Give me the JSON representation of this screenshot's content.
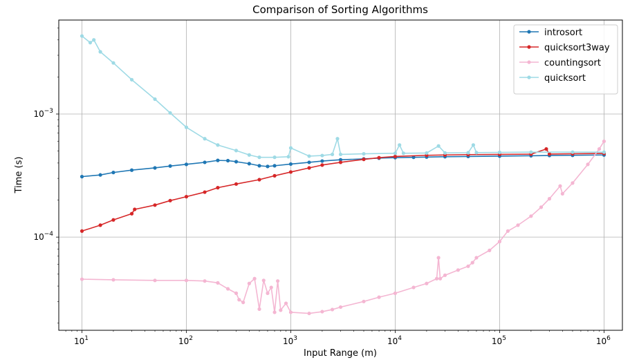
{
  "chart_data": {
    "type": "line",
    "title": "Comparison of Sorting Algorithms",
    "xlabel": "Input Range (m)",
    "ylabel": "Time (s)",
    "xscale": "log",
    "yscale": "log",
    "xlim": [
      6.0,
      1500000
    ],
    "ylim": [
      1.75e-05,
      0.0058
    ],
    "grid": true,
    "legend_position": "top-right",
    "x_ticks": [
      {
        "value": 10,
        "base": "10",
        "exp": "1"
      },
      {
        "value": 100,
        "base": "10",
        "exp": "2"
      },
      {
        "value": 1000,
        "base": "10",
        "exp": "3"
      },
      {
        "value": 10000,
        "base": "10",
        "exp": "4"
      },
      {
        "value": 100000,
        "base": "10",
        "exp": "5"
      },
      {
        "value": 1000000,
        "base": "10",
        "exp": "6"
      }
    ],
    "y_ticks": [
      {
        "value": 0.0001,
        "base": "10",
        "exp": "−4"
      },
      {
        "value": 0.001,
        "base": "10",
        "exp": "−3"
      }
    ],
    "series": [
      {
        "name": "introsort",
        "color": "#1f77b4",
        "x": [
          10,
          15,
          20,
          30,
          50,
          70,
          100,
          150,
          200,
          250,
          300,
          400,
          500,
          600,
          700,
          1000,
          1500,
          2000,
          3000,
          5000,
          7000,
          10000,
          15000,
          20000,
          30000,
          50000,
          100000,
          200000,
          300000,
          500000,
          1000000
        ],
        "y": [
          0.00031,
          0.00032,
          0.000335,
          0.00035,
          0.000365,
          0.000378,
          0.00039,
          0.000405,
          0.00042,
          0.000418,
          0.00041,
          0.000395,
          0.00038,
          0.000375,
          0.00038,
          0.000392,
          0.000405,
          0.000415,
          0.000425,
          0.000432,
          0.000438,
          0.000442,
          0.000445,
          0.000447,
          0.00045,
          0.000452,
          0.000455,
          0.000458,
          0.00046,
          0.000462,
          0.000465
        ]
      },
      {
        "name": "quicksort3way",
        "color": "#d62728",
        "x": [
          10,
          15,
          20,
          30,
          32,
          50,
          70,
          100,
          150,
          200,
          300,
          500,
          700,
          1000,
          1500,
          2000,
          3000,
          5000,
          7000,
          10000,
          20000,
          30000,
          50000,
          100000,
          200000,
          280000,
          300000,
          500000,
          1000000
        ],
        "y": [
          0.000112,
          0.000125,
          0.000138,
          0.000155,
          0.000168,
          0.000182,
          0.000198,
          0.000213,
          0.000232,
          0.000252,
          0.00027,
          0.000293,
          0.000315,
          0.000338,
          0.000365,
          0.000385,
          0.000405,
          0.000428,
          0.000442,
          0.000452,
          0.000462,
          0.000465,
          0.000468,
          0.00047,
          0.000472,
          0.00052,
          0.000473,
          0.000475,
          0.000478
        ]
      },
      {
        "name": "countingsort",
        "color": "#f4b6d2",
        "x": [
          10,
          20,
          50,
          100,
          150,
          200,
          250,
          300,
          320,
          350,
          400,
          450,
          500,
          550,
          600,
          650,
          700,
          750,
          800,
          900,
          1000,
          1500,
          2000,
          2500,
          3000,
          5000,
          7000,
          10000,
          15000,
          20000,
          25000,
          26000,
          27000,
          30000,
          40000,
          50000,
          55000,
          60000,
          80000,
          100000,
          120000,
          150000,
          200000,
          250000,
          300000,
          380000,
          400000,
          500000,
          700000,
          900000,
          1000000
        ],
        "y": [
          4.55e-05,
          4.5e-05,
          4.45e-05,
          4.45e-05,
          4.4e-05,
          4.25e-05,
          3.8e-05,
          3.5e-05,
          3.1e-05,
          2.95e-05,
          4.2e-05,
          4.6e-05,
          2.6e-05,
          4.45e-05,
          3.5e-05,
          3.9e-05,
          2.45e-05,
          4.4e-05,
          2.55e-05,
          2.9e-05,
          2.45e-05,
          2.4e-05,
          2.48e-05,
          2.58e-05,
          2.7e-05,
          3e-05,
          3.25e-05,
          3.5e-05,
          3.9e-05,
          4.2e-05,
          4.6e-05,
          6.8e-05,
          4.6e-05,
          4.9e-05,
          5.4e-05,
          5.8e-05,
          6.2e-05,
          6.8e-05,
          7.8e-05,
          9.2e-05,
          0.000112,
          0.000125,
          0.000148,
          0.000175,
          0.000205,
          0.00026,
          0.000225,
          0.000275,
          0.00039,
          0.00052,
          0.0006
        ]
      },
      {
        "name": "quicksort",
        "color": "#9edae5",
        "x": [
          10,
          12,
          13,
          15,
          20,
          30,
          50,
          70,
          100,
          150,
          200,
          300,
          400,
          500,
          700,
          950,
          1000,
          1500,
          2000,
          2500,
          2800,
          3000,
          5000,
          10000,
          11000,
          12000,
          20000,
          26000,
          30000,
          50000,
          56000,
          60000,
          100000,
          200000,
          500000,
          1000000
        ],
        "y": [
          0.0043,
          0.0038,
          0.004,
          0.0032,
          0.0026,
          0.0019,
          0.00132,
          0.00102,
          0.00078,
          0.00063,
          0.00056,
          0.000505,
          0.000465,
          0.000445,
          0.000445,
          0.00045,
          0.00053,
          0.000455,
          0.00046,
          0.00047,
          0.00063,
          0.00047,
          0.000475,
          0.00048,
          0.00056,
          0.00048,
          0.000482,
          0.00055,
          0.000483,
          0.000485,
          0.00056,
          0.000486,
          0.000488,
          0.00049,
          0.00049,
          0.00049
        ]
      }
    ]
  }
}
